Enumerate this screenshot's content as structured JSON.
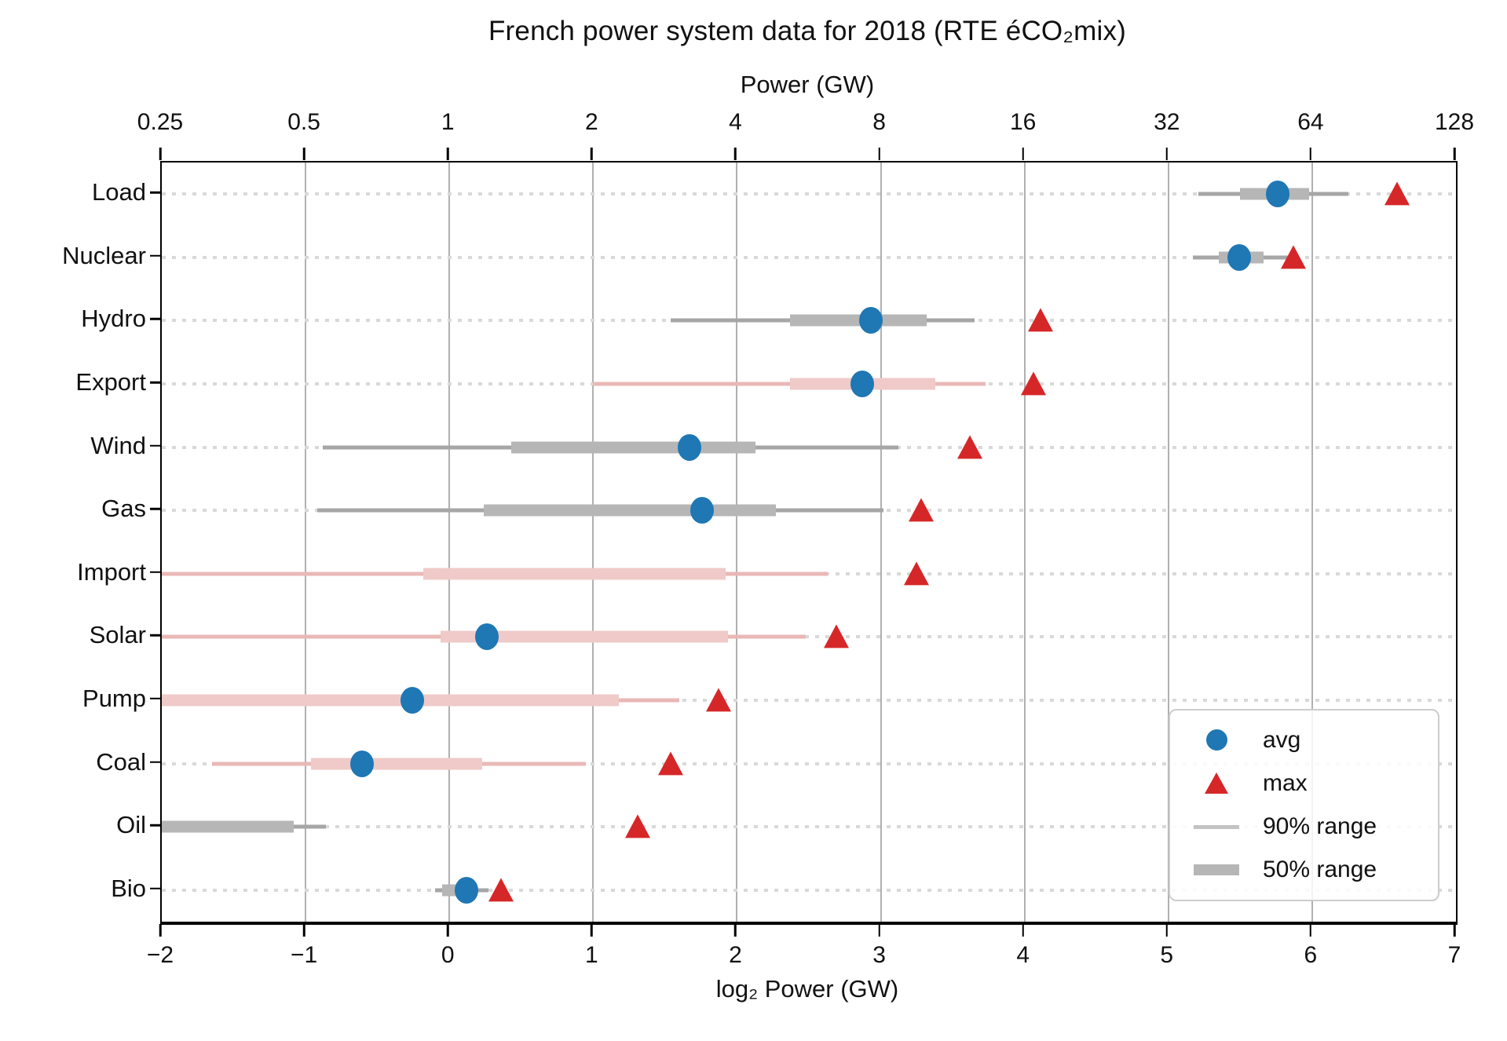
{
  "title": "French power system data for 2018 (RTE éCO₂mix)",
  "chart_data": {
    "type": "scatter",
    "subtype": "horizontal dot-and-range plot (log2 power scale)",
    "title": "French power system data for 2018 (RTE éCO₂mix)",
    "x_axis": {
      "label": "log₂ Power (GW)",
      "min": -2,
      "max": 7,
      "ticks": [
        -2,
        -1,
        0,
        1,
        2,
        3,
        4,
        5,
        6,
        7
      ],
      "tick_labels": [
        "−2",
        "−1",
        "0",
        "1",
        "2",
        "3",
        "4",
        "5",
        "6",
        "7"
      ],
      "grid": true
    },
    "top_axis": {
      "label": "Power (GW)",
      "tick_labels": [
        "0.25",
        "0.5",
        "1",
        "2",
        "4",
        "8",
        "16",
        "32",
        "64",
        "128"
      ],
      "aligned_with_bottom_ticks": true
    },
    "categories": [
      "Load",
      "Nuclear",
      "Hydro",
      "Export",
      "Wind",
      "Gas",
      "Import",
      "Solar",
      "Pump",
      "Coal",
      "Oil",
      "Bio"
    ],
    "legend": {
      "position": "lower right",
      "items": [
        "avg",
        "max",
        "90% range",
        "50% range"
      ]
    },
    "rows": [
      {
        "category": "Load",
        "range_tint": "gray",
        "avg_log2": 5.76,
        "avg_gw": 54.2,
        "max_log2": 6.59,
        "max_gw": 96.4,
        "range50_log2": [
          5.5,
          5.98
        ],
        "range90_log2": [
          5.21,
          6.25
        ]
      },
      {
        "category": "Nuclear",
        "range_tint": "gray",
        "avg_log2": 5.49,
        "avg_gw": 44.9,
        "max_log2": 5.87,
        "max_gw": 58.5,
        "range50_log2": [
          5.35,
          5.66
        ],
        "range90_log2": [
          5.17,
          5.91
        ]
      },
      {
        "category": "Hydro",
        "range_tint": "gray",
        "avg_log2": 2.93,
        "avg_gw": 7.6,
        "max_log2": 4.11,
        "max_gw": 17.3,
        "range50_log2": [
          2.37,
          3.32
        ],
        "range90_log2": [
          1.54,
          3.65
        ]
      },
      {
        "category": "Export",
        "range_tint": "pink",
        "avg_log2": 2.87,
        "avg_gw": 7.3,
        "max_log2": 4.06,
        "max_gw": 16.7,
        "range50_log2": [
          2.37,
          3.38
        ],
        "range90_log2": [
          1.0,
          3.73
        ]
      },
      {
        "category": "Wind",
        "range_tint": "gray",
        "avg_log2": 1.67,
        "avg_gw": 3.2,
        "max_log2": 3.62,
        "max_gw": 12.3,
        "range50_log2": [
          0.43,
          2.13
        ],
        "range90_log2": [
          -0.88,
          3.12
        ]
      },
      {
        "category": "Gas",
        "range_tint": "gray",
        "avg_log2": 1.76,
        "avg_gw": 3.4,
        "max_log2": 3.28,
        "max_gw": 9.7,
        "range50_log2": [
          0.24,
          2.27
        ],
        "range90_log2": [
          -0.92,
          3.02
        ]
      },
      {
        "category": "Import",
        "range_tint": "pink",
        "avg_log2": null,
        "avg_gw": null,
        "max_log2": 3.25,
        "max_gw": 9.5,
        "range50_log2": [
          -0.18,
          1.92
        ],
        "range90_log2": [
          -2,
          2.63
        ]
      },
      {
        "category": "Solar",
        "range_tint": "pink",
        "avg_log2": 0.26,
        "avg_gw": 1.2,
        "max_log2": 2.69,
        "max_gw": 6.5,
        "range50_log2": [
          -0.06,
          1.94
        ],
        "range90_log2": [
          -2,
          2.48
        ]
      },
      {
        "category": "Pump",
        "range_tint": "pink",
        "avg_log2": -0.26,
        "avg_gw": 0.8,
        "max_log2": 1.87,
        "max_gw": 3.7,
        "range50_log2": [
          -2,
          1.18
        ],
        "range90_log2": [
          -2,
          1.6
        ]
      },
      {
        "category": "Coal",
        "range_tint": "pink",
        "avg_log2": -0.61,
        "avg_gw": 0.7,
        "max_log2": 1.54,
        "max_gw": 2.9,
        "range50_log2": [
          -0.96,
          0.23
        ],
        "range90_log2": [
          -1.65,
          0.95
        ]
      },
      {
        "category": "Oil",
        "range_tint": "gray",
        "avg_log2": null,
        "avg_gw": null,
        "max_log2": 1.31,
        "max_gw": 2.5,
        "range50_log2": [
          -2,
          -1.08
        ],
        "range90_log2": [
          -2,
          -0.86
        ]
      },
      {
        "category": "Bio",
        "range_tint": "gray",
        "avg_log2": 0.12,
        "avg_gw": 1.1,
        "max_log2": 0.36,
        "max_gw": 1.3,
        "range50_log2": [
          -0.05,
          0.16
        ],
        "range90_log2": [
          -0.1,
          0.27
        ]
      }
    ],
    "colors": {
      "avg_marker": "#1f77b4",
      "max_marker": "#d62728",
      "gray_thin": "#a6a6a6",
      "gray_thick": "#b6b6b6",
      "pink_thin": "#e9b8b6",
      "pink_thick": "#efcac8",
      "gridline": "#b0b0b0",
      "row_leader": "#d9d9d9"
    }
  }
}
